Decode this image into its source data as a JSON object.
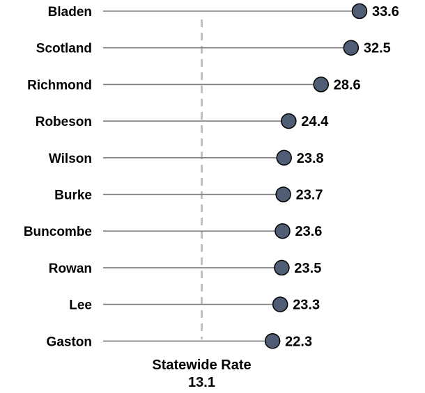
{
  "chart_data": {
    "type": "lollipop",
    "categories": [
      "Bladen",
      "Scotland",
      "Richmond",
      "Robeson",
      "Wilson",
      "Burke",
      "Buncombe",
      "Rowan",
      "Lee",
      "Gaston"
    ],
    "values": [
      33.6,
      32.5,
      28.6,
      24.4,
      23.8,
      23.7,
      23.6,
      23.5,
      23.3,
      22.3
    ],
    "value_labels": [
      "33.6",
      "32.5",
      "28.6",
      "24.4",
      "23.8",
      "23.7",
      "23.6",
      "23.5",
      "23.3",
      "22.3"
    ],
    "reference_line": {
      "value": 13.1,
      "label": "Statewide Rate",
      "value_label": "13.1",
      "style": "dashed"
    },
    "grid": false,
    "legend": "none"
  },
  "colors": {
    "marker_fill": "#4f5d75",
    "marker_stroke": "#000000",
    "stem": "#7f7f7f",
    "reference_line": "#c0c0c0",
    "text": "#000000"
  }
}
